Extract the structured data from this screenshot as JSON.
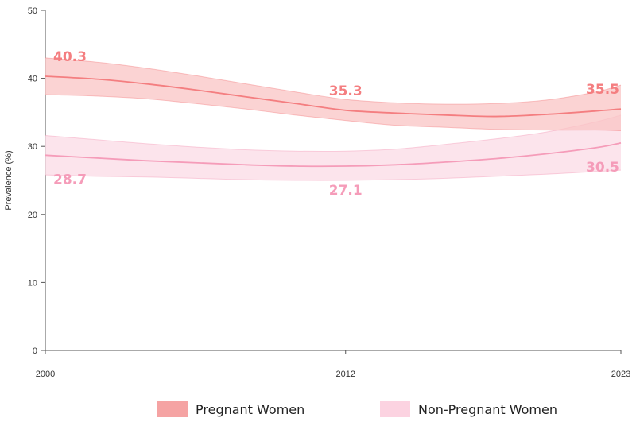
{
  "chart_data": {
    "type": "area",
    "title": "",
    "xlabel": "",
    "ylabel": "Prevalence (%)",
    "xlim": [
      2000,
      2023
    ],
    "ylim": [
      0,
      50
    ],
    "x_ticks": [
      "2000",
      "2012",
      "2023"
    ],
    "y_ticks": [
      "0",
      "10",
      "20",
      "30",
      "40",
      "50"
    ],
    "grid": false,
    "legend_position": "bottom",
    "series": [
      {
        "name": "Pregnant Women",
        "color": "#f47e80",
        "band_color": "#f9c4c4",
        "x": [
          2000,
          2002,
          2004,
          2006,
          2008,
          2010,
          2012,
          2014,
          2016,
          2018,
          2020,
          2022,
          2023
        ],
        "y": [
          40.3,
          39.9,
          39.2,
          38.3,
          37.3,
          36.3,
          35.3,
          34.9,
          34.6,
          34.4,
          34.7,
          35.2,
          35.5
        ],
        "lower": [
          37.6,
          37.4,
          37.0,
          36.3,
          35.5,
          34.6,
          33.8,
          33.1,
          32.8,
          32.5,
          32.4,
          32.4,
          32.3
        ],
        "upper": [
          43.0,
          42.4,
          41.5,
          40.4,
          39.2,
          38.0,
          36.9,
          36.4,
          36.2,
          36.3,
          36.8,
          38.0,
          39.0
        ],
        "labels": [
          {
            "x": 2000,
            "text": "40.3",
            "pos": "above"
          },
          {
            "x": 2012,
            "text": "35.3",
            "pos": "above"
          },
          {
            "x": 2023,
            "text": "35.5",
            "pos": "above"
          }
        ]
      },
      {
        "name": "Non-Pregnant Women",
        "color": "#f59cb9",
        "band_color": "#fbdbe6",
        "x": [
          2000,
          2002,
          2004,
          2006,
          2008,
          2010,
          2012,
          2014,
          2016,
          2018,
          2020,
          2022,
          2023
        ],
        "y": [
          28.7,
          28.3,
          27.9,
          27.6,
          27.3,
          27.1,
          27.1,
          27.3,
          27.7,
          28.2,
          28.9,
          29.8,
          30.5
        ],
        "lower": [
          25.8,
          25.6,
          25.5,
          25.3,
          25.1,
          25.0,
          25.0,
          25.1,
          25.3,
          25.6,
          25.9,
          26.3,
          26.5
        ],
        "upper": [
          31.6,
          31.0,
          30.4,
          29.9,
          29.5,
          29.3,
          29.3,
          29.6,
          30.3,
          31.1,
          32.1,
          33.6,
          34.6
        ],
        "labels": [
          {
            "x": 2000,
            "text": "28.7",
            "pos": "below"
          },
          {
            "x": 2012,
            "text": "27.1",
            "pos": "below"
          },
          {
            "x": 2023,
            "text": "30.5",
            "pos": "below"
          }
        ]
      }
    ]
  }
}
